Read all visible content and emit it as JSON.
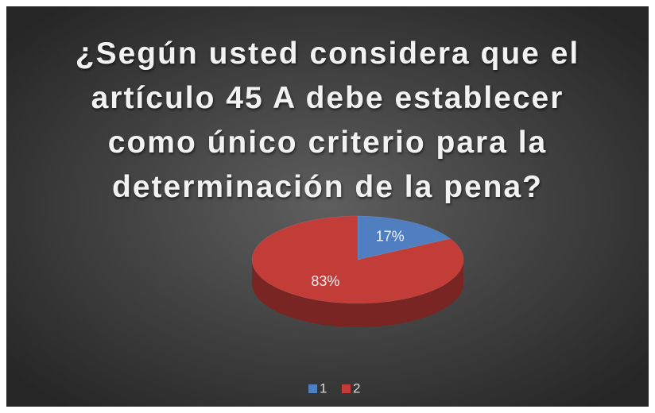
{
  "chart_data": {
    "type": "pie",
    "title": "¿Según usted considera que el artículo 45 A debe establecer como único criterio para la determinación de la pena?",
    "categories": [
      "1",
      "2"
    ],
    "values": [
      17,
      83
    ],
    "value_labels": [
      "17%",
      "83%"
    ],
    "colors": [
      "#4f7fc0",
      "#c23c38"
    ],
    "legend": "bottom"
  }
}
